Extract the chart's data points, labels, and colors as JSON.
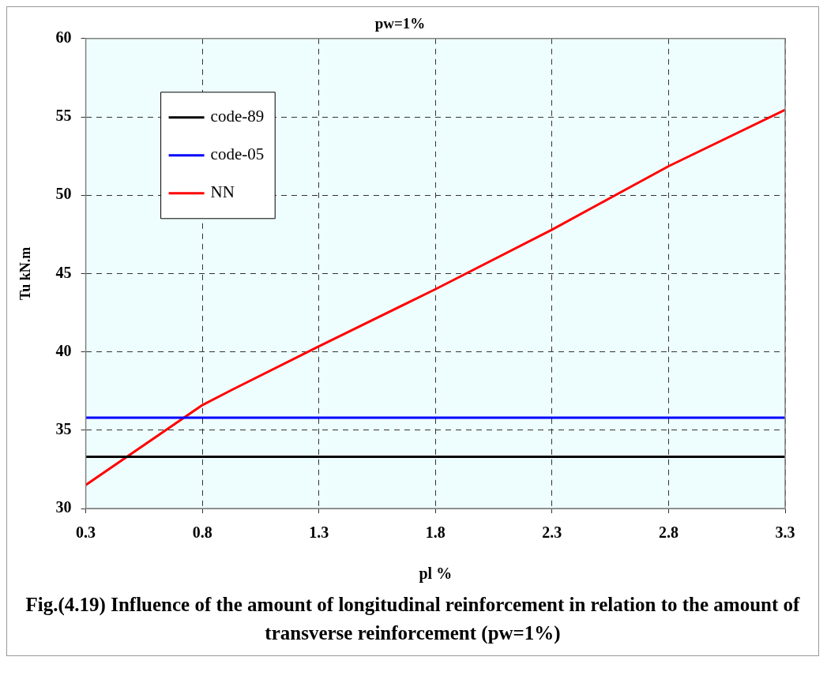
{
  "chart_data": {
    "type": "line",
    "title": "pw=1%",
    "xlabel": "pl %",
    "ylabel": "Tu kN.m",
    "annotations": [
      "Fig.(4.19) Influence of the amount of longitudinal reinforcement in relation to the amount of transverse reinforcement (pw=1%)"
    ],
    "xlim": [
      0.3,
      3.3
    ],
    "xticks": [
      0.3,
      0.8,
      1.3,
      1.8,
      2.3,
      2.8,
      3.3
    ],
    "ylim": [
      30,
      60
    ],
    "yticks": [
      30,
      35,
      40,
      45,
      50,
      55,
      60
    ],
    "grid": true,
    "legend": "top left",
    "marker": "none",
    "line_style": "solid",
    "series": [
      {
        "name": "code-89",
        "color": "#000000",
        "x": [
          0.3,
          3.3
        ],
        "values": [
          33.3,
          33.3
        ]
      },
      {
        "name": "code-05",
        "color": "#0000ff",
        "x": [
          0.3,
          3.3
        ],
        "values": [
          35.8,
          35.8
        ]
      },
      {
        "name": "NN",
        "color": "#ff0000",
        "x": [
          0.3,
          0.8,
          0.93,
          1.3,
          1.8,
          2.3,
          2.8,
          3.3
        ],
        "values": [
          31.5,
          36.6,
          37.6,
          40.35,
          44.0,
          47.8,
          51.85,
          55.45
        ]
      }
    ]
  }
}
